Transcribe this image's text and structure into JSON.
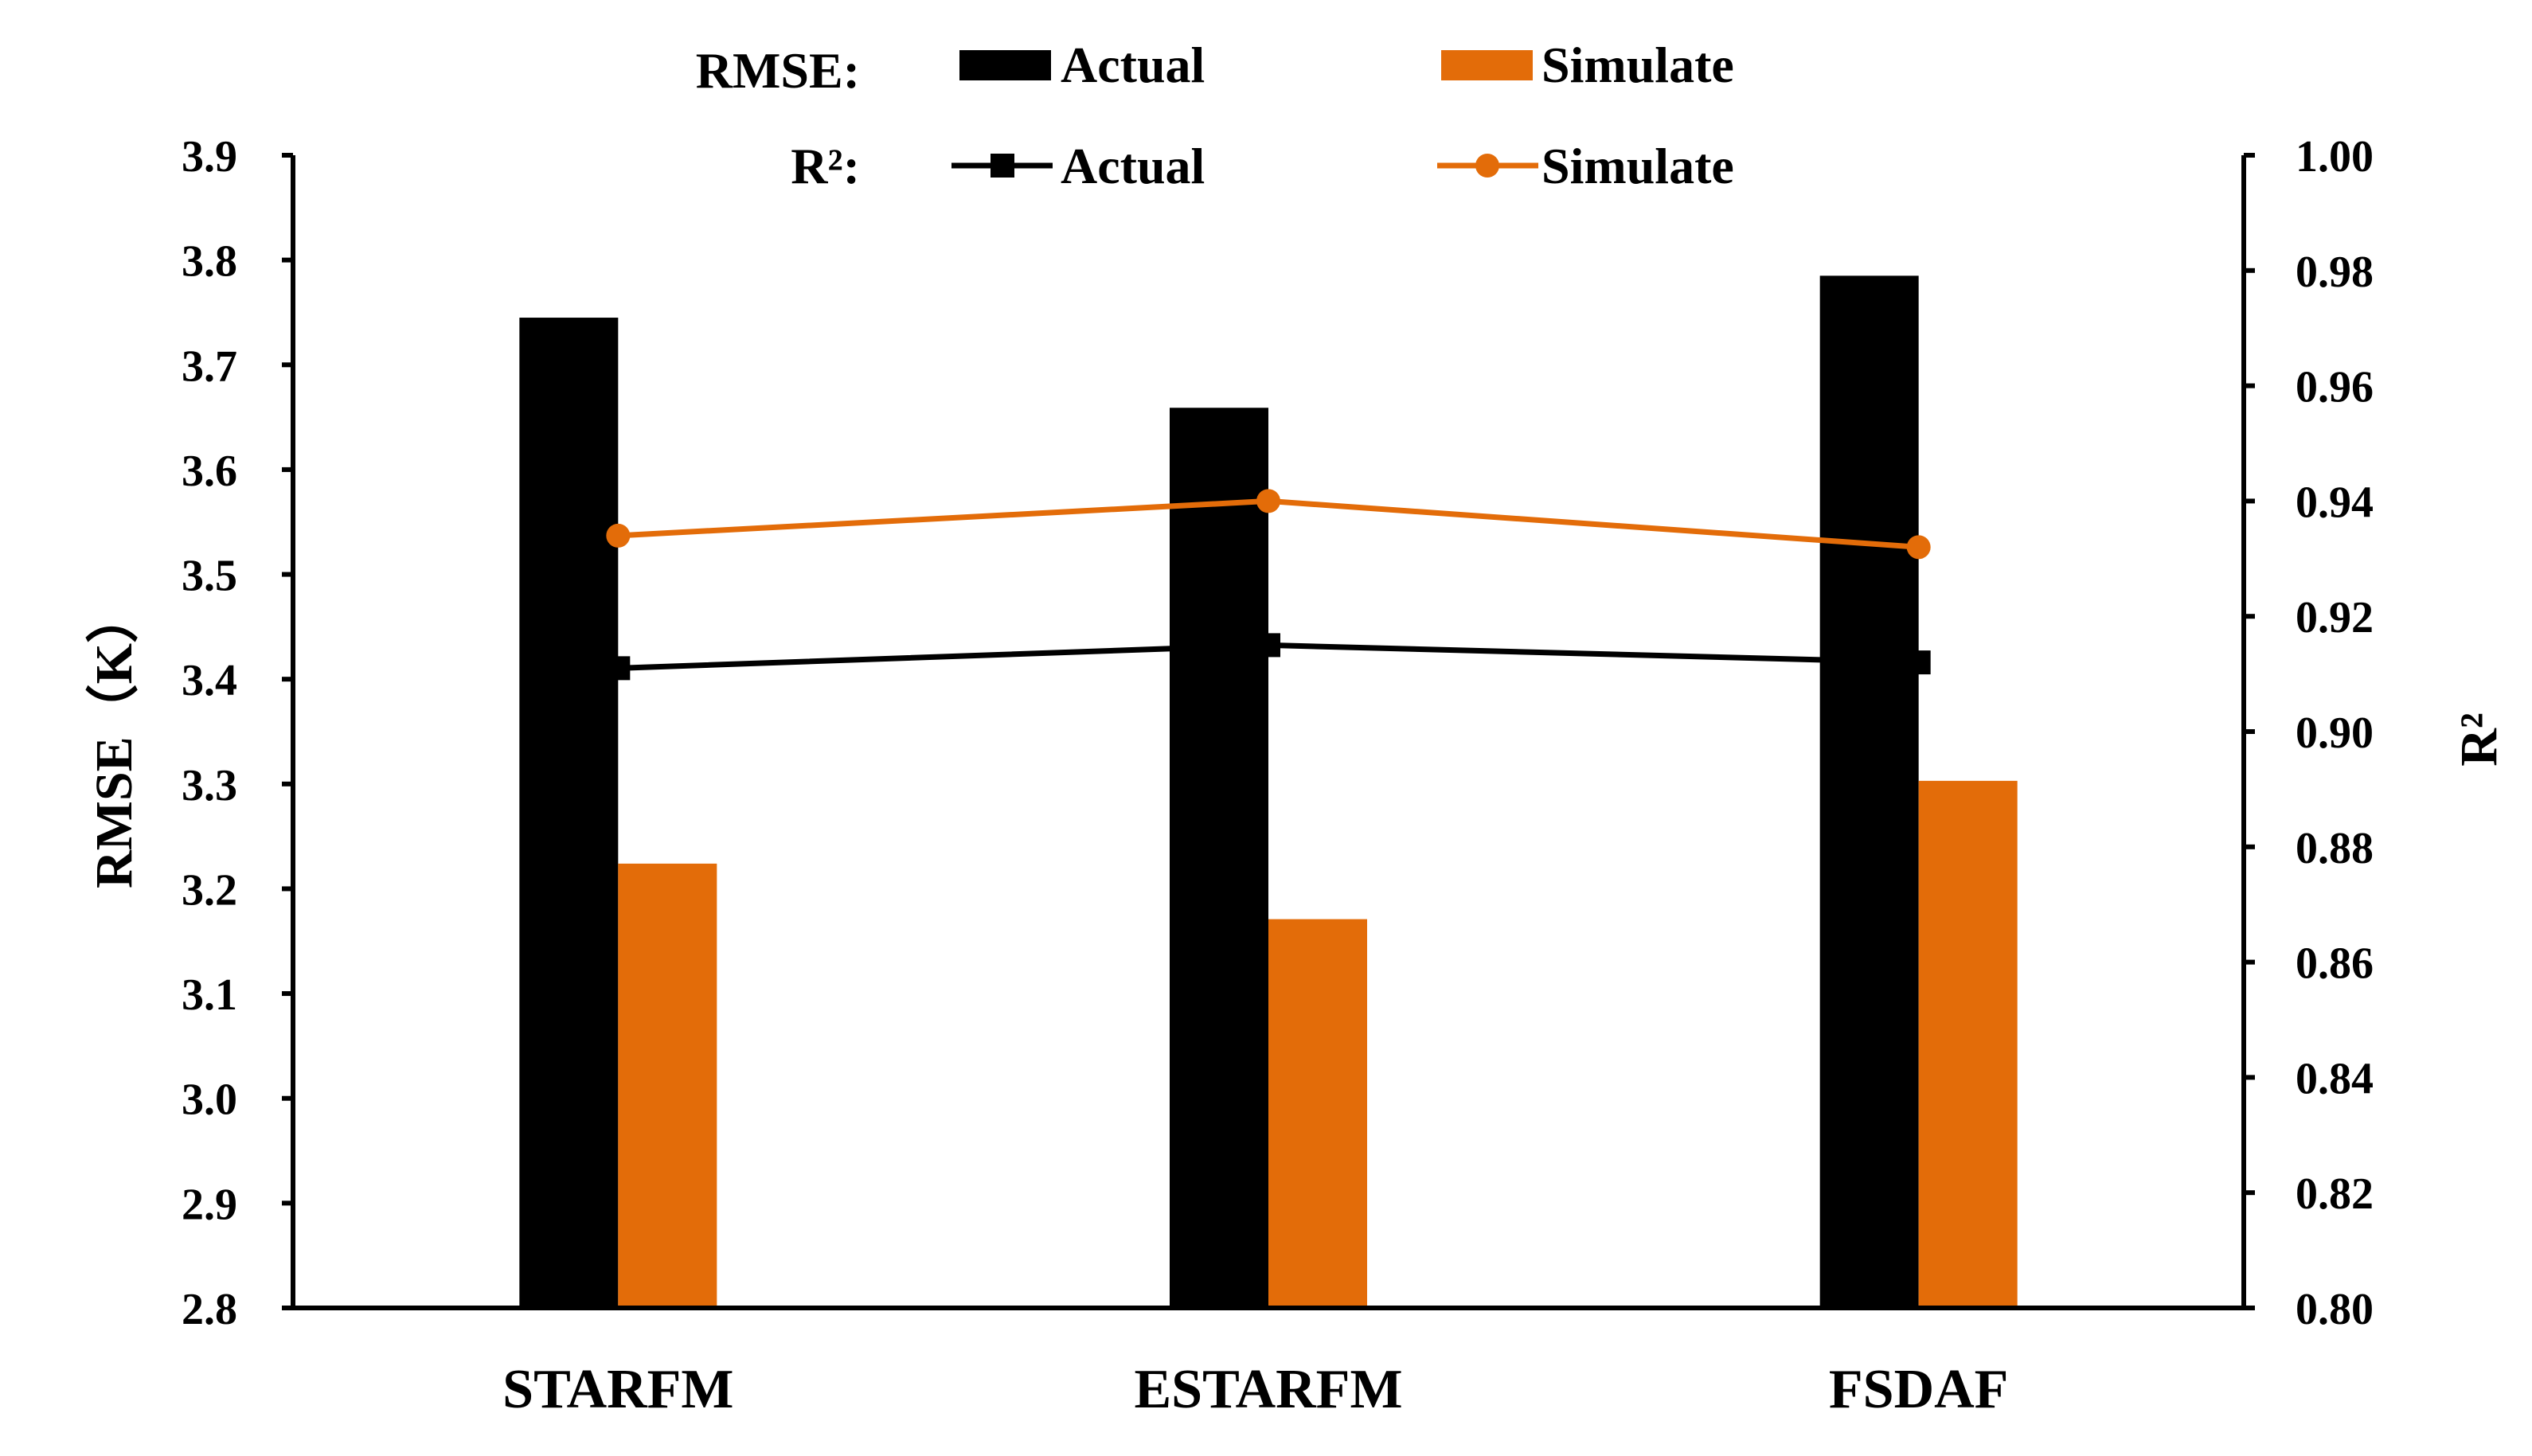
{
  "chart_data": {
    "type": "bar+line",
    "categories": [
      "STARFM",
      "ESTARFM",
      "FSDAF"
    ],
    "bar_series": [
      {
        "name": "Actual",
        "axis": "left",
        "color": "#000000",
        "values": [
          3.745,
          3.659,
          3.785
        ]
      },
      {
        "name": "Simulate",
        "axis": "left",
        "color": "#E36C09",
        "values": [
          3.224,
          3.171,
          3.303
        ]
      }
    ],
    "line_series": [
      {
        "name": "Actual",
        "axis": "right",
        "color": "#000000",
        "marker": "square",
        "values": [
          0.911,
          0.915,
          0.912
        ]
      },
      {
        "name": "Simulate",
        "axis": "right",
        "color": "#E36C09",
        "marker": "circle",
        "values": [
          0.934,
          0.94,
          0.932
        ]
      }
    ],
    "left_axis": {
      "label": "RMSE（K）",
      "ylim": [
        2.8,
        3.9
      ],
      "ticks": [
        "2.8",
        "2.9",
        "3.0",
        "3.1",
        "3.2",
        "3.3",
        "3.4",
        "3.5",
        "3.6",
        "3.7",
        "3.8",
        "3.9"
      ]
    },
    "right_axis": {
      "label": "R²",
      "ylim": [
        0.8,
        1.0
      ],
      "ticks": [
        "0.80",
        "0.82",
        "0.84",
        "0.86",
        "0.88",
        "0.90",
        "0.92",
        "0.94",
        "0.96",
        "0.98",
        "1.00"
      ]
    },
    "legend": {
      "rmse_label": "RMSE:",
      "r2_label": "R²:",
      "actual_label": "Actual",
      "simulate_label": "Simulate"
    },
    "grid": false
  }
}
